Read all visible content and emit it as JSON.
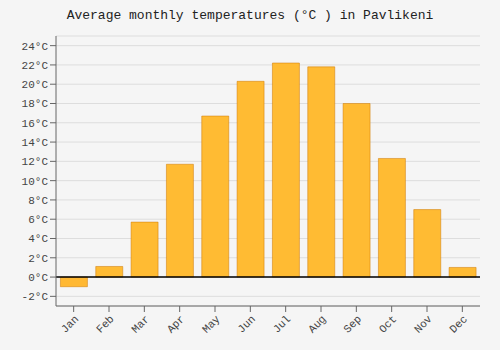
{
  "chart_data": {
    "type": "bar",
    "title": "Average monthly temperatures (°C ) in Pavlikeni",
    "categories": [
      "Jan",
      "Feb",
      "Mar",
      "Apr",
      "May",
      "Jun",
      "Jul",
      "Aug",
      "Sep",
      "Oct",
      "Nov",
      "Dec"
    ],
    "values": [
      -1.0,
      1.1,
      5.7,
      11.7,
      16.7,
      20.3,
      22.2,
      21.8,
      18.0,
      12.3,
      7.0,
      1.0
    ],
    "colors": [
      "#FFB833",
      "#FFBB33",
      "#FFBB33",
      "#FFBB33",
      "#FFBB33",
      "#FFBB33",
      "#FFBB33",
      "#FFBB33",
      "#FFBB33",
      "#FFBB33",
      "#FFBB33",
      "#FFBB33"
    ],
    "ylim": [
      -3,
      25
    ],
    "yticks": [
      {
        "value": -2,
        "label": "-2°C"
      },
      {
        "value": 0,
        "label": "0°C"
      },
      {
        "value": 2,
        "label": "2°C"
      },
      {
        "value": 4,
        "label": "4°C"
      },
      {
        "value": 6,
        "label": "6°C"
      },
      {
        "value": 8,
        "label": "8°C"
      },
      {
        "value": 10,
        "label": "10°C"
      },
      {
        "value": 12,
        "label": "12°C"
      },
      {
        "value": 14,
        "label": "14°C"
      },
      {
        "value": 16,
        "label": "16°C"
      },
      {
        "value": 18,
        "label": "18°C"
      },
      {
        "value": 20,
        "label": "20°C"
      },
      {
        "value": 22,
        "label": "22°C"
      },
      {
        "value": 24,
        "label": "24°C"
      }
    ],
    "grid": true
  }
}
